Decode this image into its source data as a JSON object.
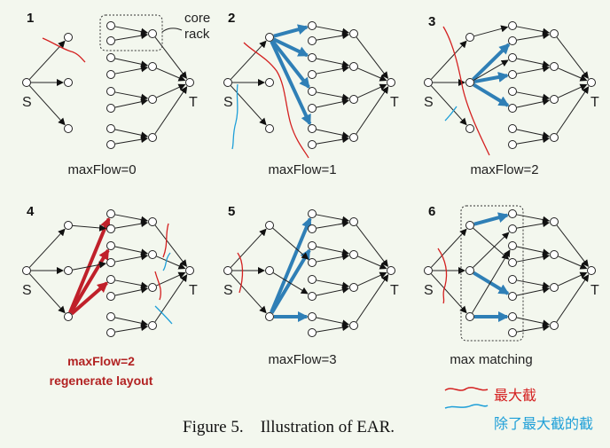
{
  "panels": [
    {
      "num": "1",
      "caption": "maxFlow=0"
    },
    {
      "num": "2",
      "caption": "maxFlow=1"
    },
    {
      "num": "3",
      "caption": "maxFlow=2"
    },
    {
      "num": "4",
      "caption_line1": "maxFlow=2",
      "caption_line2": "regenerate layout"
    },
    {
      "num": "5",
      "caption": "maxFlow=3"
    },
    {
      "num": "6",
      "caption": "max matching"
    }
  ],
  "node_labels": {
    "source": "S",
    "sink": "T"
  },
  "annotation": {
    "core": "core",
    "rack": "rack"
  },
  "legend": {
    "red_label": "最大截",
    "blue_label": "除了最大截的截",
    "red_color": "#d42020",
    "blue_color": "#1e9fd8"
  },
  "figure_caption": "Figure 5.    Illustration of EAR.",
  "colors": {
    "flow_blue": "#2f7fb6",
    "flow_red": "#c0202a",
    "edge": "#222222"
  }
}
